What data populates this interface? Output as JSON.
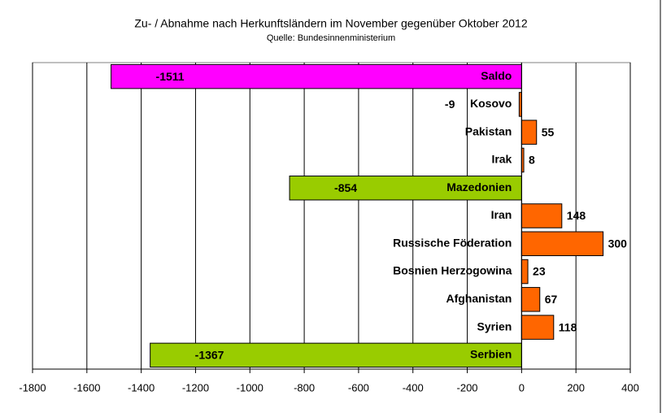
{
  "chart_data": {
    "type": "hbar",
    "title": "Zu- / Abnahme nach Herkunftsländern im November gegenüber Oktober 2012",
    "subtitle": "Quelle: Bundesinnenministerium",
    "categories": [
      "Saldo",
      "Kosovo",
      "Pakistan",
      "Irak",
      "Mazedonien",
      "Iran",
      "Russische Föderation",
      "Bosnien Herzogowina",
      "Afghanistan",
      "Syrien",
      "Serbien"
    ],
    "values": [
      -1511,
      -9,
      55,
      8,
      -854,
      148,
      300,
      23,
      67,
      118,
      -1367
    ],
    "colors": [
      "#ff00ff",
      "#ff6600",
      "#ff6600",
      "#ff6600",
      "#99cc00",
      "#ff6600",
      "#ff6600",
      "#ff6600",
      "#ff6600",
      "#ff6600",
      "#99cc00"
    ],
    "xlim": [
      -1800,
      400
    ],
    "xticks": [
      -1800,
      -1600,
      -1400,
      -1200,
      -1000,
      -800,
      -600,
      -400,
      -200,
      0,
      200,
      400
    ],
    "grid": true
  }
}
